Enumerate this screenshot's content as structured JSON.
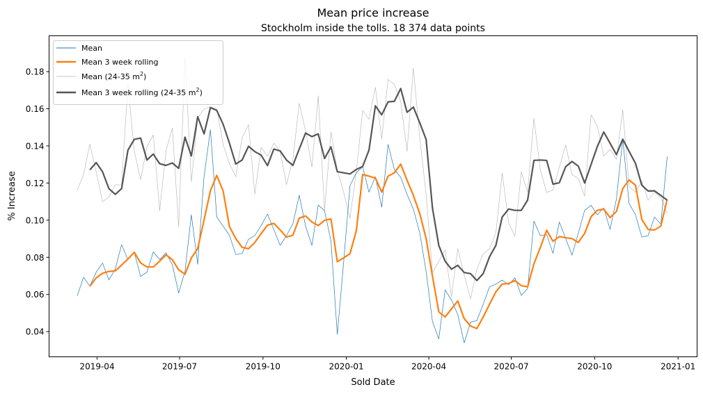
{
  "chart_data": {
    "type": "line",
    "title": "Mean price increase",
    "subtitle": "Stockholm inside the tolls. 18 374 data points",
    "xlabel": "Sold Date",
    "ylabel": "% Increase",
    "x_start": "2019-03-10",
    "x_step_days": 7,
    "xlim": [
      "2019-02-07",
      "2021-01-22"
    ],
    "ylim": [
      0.0264,
      0.1993
    ],
    "xticks": [
      "2019-04",
      "2019-07",
      "2019-10",
      "2020-01",
      "2020-04",
      "2020-07",
      "2020-10",
      "2021-01"
    ],
    "yticks": [
      "0.04",
      "0.06",
      "0.08",
      "0.10",
      "0.12",
      "0.14",
      "0.16",
      "0.18"
    ],
    "grid": false,
    "legend_position": "top-left",
    "series": [
      {
        "name": "Mean",
        "color": "#1f77b4",
        "offset": 0,
        "values": [
          0.0593,
          0.0692,
          0.0645,
          0.072,
          0.0769,
          0.0678,
          0.0736,
          0.0868,
          0.0788,
          0.0827,
          0.0697,
          0.072,
          0.0829,
          0.0788,
          0.0824,
          0.076,
          0.0608,
          0.0724,
          0.1029,
          0.0763,
          0.1237,
          0.1487,
          0.1017,
          0.0968,
          0.0919,
          0.0815,
          0.0821,
          0.0897,
          0.0917,
          0.0971,
          0.1033,
          0.095,
          0.0864,
          0.0917,
          0.098,
          0.1134,
          0.0968,
          0.0864,
          0.1081,
          0.1051,
          0.0888,
          0.0384,
          0.0773,
          0.1185,
          0.1255,
          0.1288,
          0.1151,
          0.1234,
          0.107,
          0.1408,
          0.1273,
          0.1231,
          0.1139,
          0.106,
          0.0931,
          0.0724,
          0.0455,
          0.036,
          0.0624,
          0.0571,
          0.0492,
          0.0339,
          0.0451,
          0.0459,
          0.0547,
          0.0641,
          0.0656,
          0.0677,
          0.0653,
          0.0689,
          0.0595,
          0.0632,
          0.0995,
          0.0917,
          0.0922,
          0.0821,
          0.099,
          0.0901,
          0.0811,
          0.0931,
          0.1053,
          0.108,
          0.1029,
          0.1066,
          0.095,
          0.1114,
          0.1438,
          0.109,
          0.1029,
          0.0909,
          0.0917,
          0.1017,
          0.0978,
          0.1343
        ]
      },
      {
        "name": "Mean 3 week rolling",
        "color": "#ff7f0e",
        "offset": 2,
        "values": [
          0.0644,
          0.0689,
          0.0714,
          0.0724,
          0.0727,
          0.0758,
          0.0791,
          0.0827,
          0.077,
          0.0748,
          0.0748,
          0.0779,
          0.0813,
          0.0787,
          0.0733,
          0.0709,
          0.0797,
          0.0846,
          0.1002,
          0.1158,
          0.1241,
          0.1158,
          0.0966,
          0.0901,
          0.0854,
          0.0846,
          0.088,
          0.0928,
          0.0973,
          0.0983,
          0.0947,
          0.0909,
          0.0919,
          0.1011,
          0.1023,
          0.099,
          0.0971,
          0.0999,
          0.1007,
          0.0776,
          0.0797,
          0.0819,
          0.0943,
          0.1246,
          0.1237,
          0.1227,
          0.1151,
          0.1237,
          0.1255,
          0.1302,
          0.1215,
          0.1133,
          0.1035,
          0.0901,
          0.0699,
          0.0506,
          0.0479,
          0.0522,
          0.0565,
          0.047,
          0.043,
          0.0416,
          0.0479,
          0.0547,
          0.0614,
          0.0656,
          0.0659,
          0.0675,
          0.0647,
          0.0641,
          0.0765,
          0.0852,
          0.0946,
          0.0886,
          0.0912,
          0.0905,
          0.0901,
          0.088,
          0.0929,
          0.1019,
          0.1053,
          0.106,
          0.1014,
          0.1047,
          0.117,
          0.1217,
          0.1188,
          0.1004,
          0.095,
          0.0947,
          0.0968,
          0.1112
        ]
      },
      {
        "name": "Mean (24-35 m",
        "name_sup": "2",
        "name_end": ")",
        "color": "#b0b0b0",
        "offset": 0,
        "values": [
          0.1161,
          0.1246,
          0.141,
          0.1261,
          0.1099,
          0.1124,
          0.119,
          0.119,
          0.1731,
          0.1373,
          0.1218,
          0.1395,
          0.1459,
          0.1051,
          0.1373,
          0.1496,
          0.0964,
          0.1878,
          0.1206,
          0.155,
          0.16,
          0.161,
          0.16,
          0.1408,
          0.1304,
          0.1234,
          0.1444,
          0.1515,
          0.1141,
          0.1393,
          0.1344,
          0.1414,
          0.1371,
          0.1191,
          0.1328,
          0.163,
          0.1481,
          0.1286,
          0.167,
          0.1053,
          0.1475,
          0.127,
          0.1151,
          0.101,
          0.126,
          0.159,
          0.1544,
          0.1716,
          0.1438,
          0.1758,
          0.1731,
          0.164,
          0.1371,
          0.1819,
          0.1444,
          0.1139,
          0.0718,
          0.0779,
          0.084,
          0.0589,
          0.0846,
          0.0705,
          0.0575,
          0.0736,
          0.0819,
          0.0846,
          0.0931,
          0.1255,
          0.0986,
          0.0913,
          0.1259,
          0.1151,
          0.1548,
          0.1273,
          0.1149,
          0.1163,
          0.1286,
          0.1405,
          0.1246,
          0.1224,
          0.1129,
          0.1568,
          0.1505,
          0.1346,
          0.1381,
          0.1328,
          0.1594,
          0.1182,
          0.1151,
          0.1212,
          0.1108,
          0.1151,
          0.1121,
          0.1035
        ]
      },
      {
        "name": "Mean 3 week rolling (24-35 m",
        "name_sup": "2",
        "name_end": ")",
        "color": "#555555",
        "offset": 2,
        "values": [
          0.1271,
          0.131,
          0.1261,
          0.117,
          0.1139,
          0.117,
          0.1377,
          0.1435,
          0.1442,
          0.1324,
          0.1356,
          0.1304,
          0.1295,
          0.1308,
          0.1279,
          0.1447,
          0.1346,
          0.1557,
          0.1465,
          0.1606,
          0.1591,
          0.1517,
          0.1415,
          0.1302,
          0.1324,
          0.1398,
          0.1369,
          0.135,
          0.1294,
          0.1383,
          0.1373,
          0.1324,
          0.1295,
          0.1383,
          0.1469,
          0.145,
          0.1465,
          0.1332,
          0.1395,
          0.1261,
          0.1255,
          0.1249,
          0.1273,
          0.1289,
          0.1377,
          0.1616,
          0.1567,
          0.1637,
          0.164,
          0.1709,
          0.1581,
          0.1609,
          0.1524,
          0.1435,
          0.1066,
          0.0864,
          0.0779,
          0.0736,
          0.0757,
          0.0718,
          0.0712,
          0.0675,
          0.0712,
          0.0803,
          0.0864,
          0.1017,
          0.106,
          0.1053,
          0.1053,
          0.1108,
          0.1322,
          0.1324,
          0.1322,
          0.1194,
          0.1202,
          0.1288,
          0.1316,
          0.1291,
          0.12,
          0.13,
          0.1398,
          0.1475,
          0.1414,
          0.1353,
          0.1436,
          0.1371,
          0.1306,
          0.1188,
          0.1157,
          0.1158,
          0.1133,
          0.1108
        ]
      }
    ]
  }
}
